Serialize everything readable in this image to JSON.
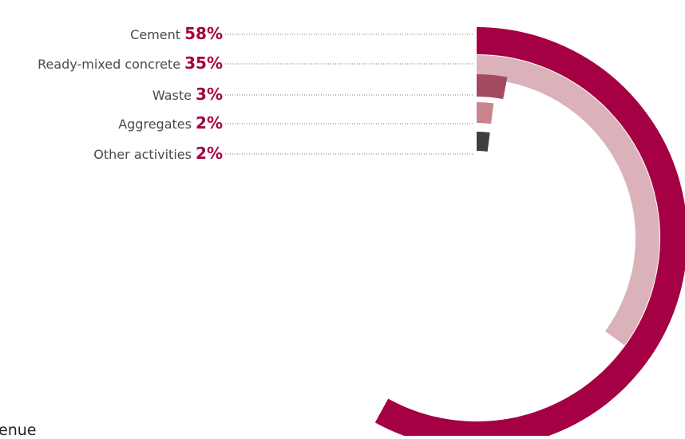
{
  "chart_data": {
    "type": "radial-bar",
    "title": "",
    "max_value": 100,
    "series": [
      {
        "name": "Cement",
        "value": 58,
        "label": "58%",
        "color": "#a50044"
      },
      {
        "name": "Ready-mixed concrete",
        "value": 35,
        "label": "35%",
        "color": "#dbb2ba"
      },
      {
        "name": "Waste",
        "value": 3,
        "label": "3%",
        "color": "#a34a5e"
      },
      {
        "name": "Aggregates",
        "value": 2,
        "label": "2%",
        "color": "#c9858f"
      },
      {
        "name": "Other activities",
        "value": 2,
        "label": "2%",
        "color": "#3f3f3f"
      }
    ],
    "value_color": "#a50044",
    "legend_placement": "left"
  },
  "partial_heading": "enue"
}
